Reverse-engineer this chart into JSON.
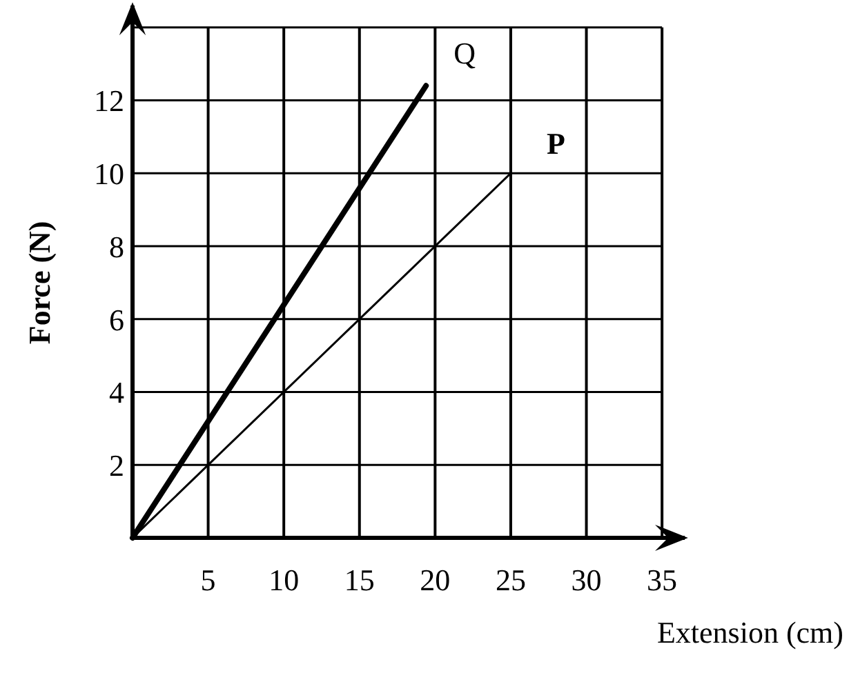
{
  "chart_data": {
    "type": "line",
    "xlabel": "Extension (cm)",
    "ylabel": "Force (N)",
    "xlim": [
      0,
      36.5
    ],
    "ylim": [
      0,
      14.6
    ],
    "xticks": [
      5,
      10,
      15,
      20,
      25,
      30,
      35
    ],
    "yticks": [
      2,
      4,
      6,
      8,
      10,
      12,
      {
        "value": 14,
        "label": null
      }
    ],
    "grid": true,
    "marker": "none",
    "line_style": "solid",
    "series": [
      {
        "name": "Q",
        "color": "#000000",
        "x": [
          0,
          19.4
        ],
        "values": [
          0,
          12.4
        ]
      },
      {
        "name": "P",
        "color": "#000000",
        "x": [
          0,
          25
        ],
        "values": [
          0,
          10
        ]
      }
    ]
  }
}
